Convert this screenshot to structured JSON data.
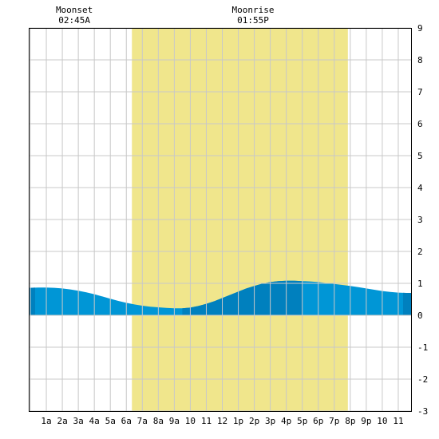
{
  "chart_data": {
    "type": "area",
    "title": "",
    "xlabel": "",
    "ylabel": "",
    "x_ticks": [
      {
        "x": 1,
        "label": "1a"
      },
      {
        "x": 2,
        "label": "2a"
      },
      {
        "x": 3,
        "label": "3a"
      },
      {
        "x": 4,
        "label": "4a"
      },
      {
        "x": 5,
        "label": "5a"
      },
      {
        "x": 6,
        "label": "6a"
      },
      {
        "x": 7,
        "label": "7a"
      },
      {
        "x": 8,
        "label": "8a"
      },
      {
        "x": 9,
        "label": "9a"
      },
      {
        "x": 10,
        "label": "10"
      },
      {
        "x": 11,
        "label": "11"
      },
      {
        "x": 12,
        "label": "12"
      },
      {
        "x": 13,
        "label": "1p"
      },
      {
        "x": 14,
        "label": "2p"
      },
      {
        "x": 15,
        "label": "3p"
      },
      {
        "x": 16,
        "label": "4p"
      },
      {
        "x": 17,
        "label": "5p"
      },
      {
        "x": 18,
        "label": "6p"
      },
      {
        "x": 19,
        "label": "7p"
      },
      {
        "x": 20,
        "label": "8p"
      },
      {
        "x": 21,
        "label": "9p"
      },
      {
        "x": 22,
        "label": "10"
      },
      {
        "x": 23,
        "label": "11"
      }
    ],
    "xlim": [
      -0.1,
      23.8
    ],
    "ylim": [
      -3,
      9
    ],
    "y_ticks": [
      -3,
      -2,
      -1,
      0,
      1,
      2,
      3,
      4,
      5,
      6,
      7,
      8,
      9
    ],
    "grid": true,
    "daylight": {
      "start": 6.35,
      "end": 19.85,
      "color": "#f0e68c"
    },
    "moon_events": [
      {
        "label": "Moonset",
        "time": "02:45A",
        "x": 2.75
      },
      {
        "label": "Moonrise",
        "time": "01:55P",
        "x": 13.92
      }
    ],
    "series": [
      {
        "x": [
          -0.1,
          0.5,
          1,
          1.5,
          2,
          2.5,
          3,
          3.5,
          4,
          4.5,
          5,
          5.5,
          6,
          6.5,
          7,
          7.5,
          8,
          8.5,
          9,
          9.5,
          10,
          10.5,
          11,
          11.5,
          12,
          12.5,
          13,
          13.5,
          14,
          14.5,
          15,
          15.5,
          16,
          16.5,
          17,
          17.5,
          18,
          18.5,
          19,
          19.5,
          20,
          20.5,
          21,
          21.5,
          22,
          22.5,
          23,
          23.5,
          23.8
        ],
        "values": [
          0.86,
          0.87,
          0.87,
          0.86,
          0.84,
          0.81,
          0.77,
          0.72,
          0.66,
          0.59,
          0.52,
          0.45,
          0.39,
          0.34,
          0.3,
          0.27,
          0.25,
          0.23,
          0.22,
          0.22,
          0.24,
          0.29,
          0.36,
          0.44,
          0.54,
          0.64,
          0.74,
          0.84,
          0.92,
          0.99,
          1.04,
          1.07,
          1.08,
          1.08,
          1.07,
          1.06,
          1.04,
          1.01,
          0.98,
          0.95,
          0.92,
          0.88,
          0.84,
          0.8,
          0.76,
          0.73,
          0.71,
          0.7,
          0.7
        ]
      }
    ],
    "colors": {
      "tide": "#0096d6",
      "tide_dark": "#0080be",
      "daylight": "#f0e68c",
      "grid": "#c8c8c8",
      "border": "#000000"
    }
  }
}
